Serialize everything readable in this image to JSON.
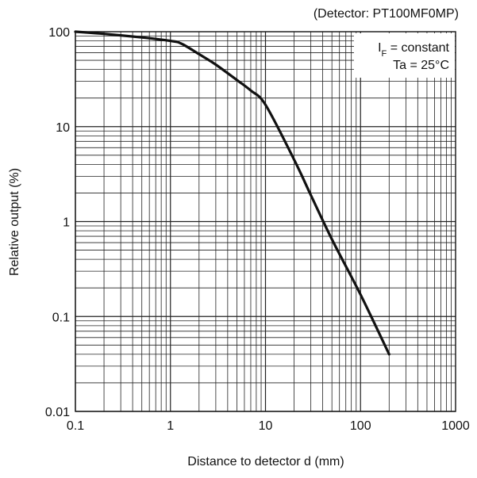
{
  "chart_data": {
    "type": "line",
    "title": "",
    "subtitle": "(Detector: PT100MF0MP)",
    "xlabel": "Distance to detector d (mm)",
    "ylabel": "Relative output (%)",
    "xscale": "log",
    "yscale": "log",
    "xlim": [
      0.1,
      1000
    ],
    "ylim": [
      0.01,
      100
    ],
    "grid": true,
    "x_ticks": [
      "0.1",
      "1",
      "10",
      "100",
      "1000"
    ],
    "y_ticks": [
      "0.01",
      "0.1",
      "1",
      "10",
      "100"
    ],
    "annotation": {
      "line1_main": "I",
      "line1_sub": "F",
      "line1_rest": " = constant",
      "line2": "Ta = 25°C"
    },
    "series": [
      {
        "x": [
          0.1,
          0.2,
          0.5,
          1,
          1.3,
          2,
          3,
          5,
          7,
          10,
          20,
          30,
          50,
          100,
          200
        ],
        "y": [
          100,
          95,
          87,
          80,
          75,
          58,
          45,
          31,
          24,
          17,
          4.5,
          1.9,
          0.65,
          0.17,
          0.04
        ]
      }
    ]
  }
}
